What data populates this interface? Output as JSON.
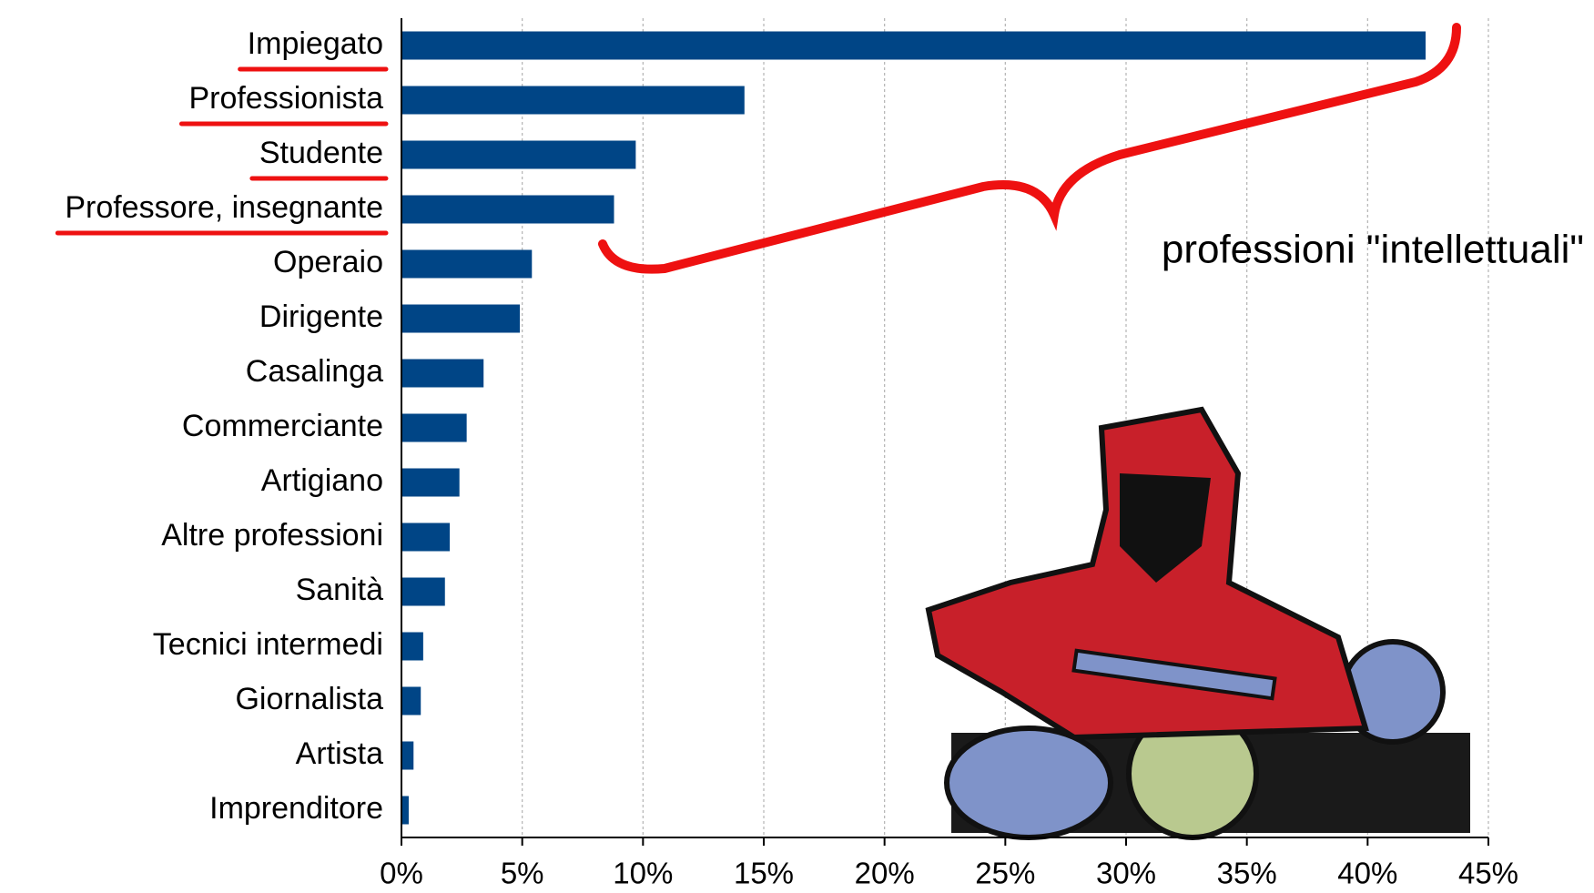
{
  "chart_data": {
    "type": "barh",
    "categories": [
      "Impiegato",
      "Professionista",
      "Studente",
      "Professore, insegnante",
      "Operaio",
      "Dirigente",
      "Casalinga",
      "Commerciante",
      "Artigiano",
      "Altre professioni",
      "Sanità",
      "Tecnici intermedi",
      "Giornalista",
      "Artista",
      "Imprenditore"
    ],
    "values": [
      42.4,
      14.2,
      9.7,
      8.8,
      5.4,
      4.9,
      3.4,
      2.7,
      2.4,
      2.0,
      1.8,
      0.9,
      0.8,
      0.5,
      0.3
    ],
    "color": "#004586",
    "xlim": [
      0,
      45
    ],
    "xticks": [
      {
        "value": 0,
        "label": "0%"
      },
      {
        "value": 5,
        "label": "5%"
      },
      {
        "value": 10,
        "label": "10%"
      },
      {
        "value": 15,
        "label": "15%"
      },
      {
        "value": 20,
        "label": "20%"
      },
      {
        "value": 25,
        "label": "25%"
      },
      {
        "value": 30,
        "label": "30%"
      },
      {
        "value": 35,
        "label": "35%"
      },
      {
        "value": 40,
        "label": "40%"
      },
      {
        "value": 45,
        "label": "45%"
      }
    ],
    "grid": true,
    "annotation": "professioni \"intellettuali\""
  }
}
